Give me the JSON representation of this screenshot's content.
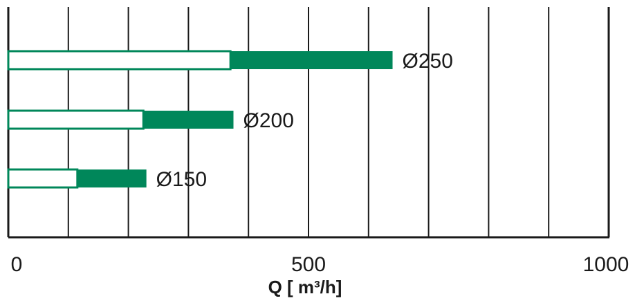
{
  "chart_data": {
    "type": "bar",
    "orientation": "horizontal",
    "xlabel": "Q [ m³/h]",
    "xlim": [
      0,
      1000
    ],
    "x_tick_labels": [
      {
        "value": 0,
        "label": "0"
      },
      {
        "value": 500,
        "label": "500"
      },
      {
        "value": 1000,
        "label": "1000"
      }
    ],
    "gridlines": [
      0,
      100,
      200,
      300,
      400,
      500,
      600,
      700,
      800,
      900,
      1000
    ],
    "grid": true,
    "categories": [
      "Ø250",
      "Ø200",
      "Ø150"
    ],
    "series": [
      {
        "ranges": [
          [
            0,
            370
          ],
          [
            0,
            225
          ],
          [
            0,
            115
          ]
        ],
        "style": "outline"
      },
      {
        "ranges": [
          [
            370,
            640
          ],
          [
            225,
            375
          ],
          [
            115,
            230
          ]
        ],
        "style": "filled"
      }
    ],
    "colors": {
      "bar": "#00875a",
      "grid": "#1a1a1a"
    }
  }
}
